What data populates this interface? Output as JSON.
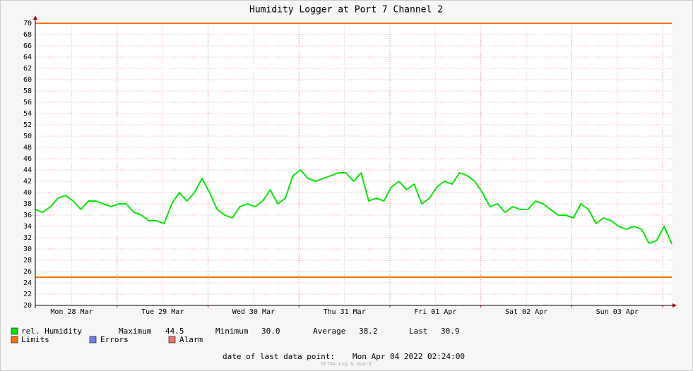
{
  "chart_data": {
    "type": "line",
    "title": "Humidity Logger at Port 7 Channel 2",
    "xlim": [
      2.4,
      170.4
    ],
    "x": [
      2.4,
      4.4,
      6.4,
      8.4,
      10.4,
      12.4,
      14.4,
      16.4,
      18.4,
      20.4,
      22.4,
      24.4,
      26.4,
      28.4,
      30.4,
      32.4,
      34.4,
      36.4,
      38.4,
      40.4,
      42.4,
      44.4,
      46.4,
      48.4,
      50.4,
      52.4,
      54.4,
      56.4,
      58.4,
      60.4,
      62.4,
      64.4,
      66.4,
      68.4,
      70.4,
      72.4,
      74.4,
      76.4,
      78.4,
      80.4,
      82.4,
      84.4,
      86.4,
      88.4,
      90.4,
      92.4,
      94.4,
      96.4,
      98.4,
      100.4,
      102.4,
      104.4,
      106.4,
      108.4,
      110.4,
      112.4,
      114.4,
      116.4,
      118.4,
      120.4,
      122.4,
      124.4,
      126.4,
      128.4,
      130.4,
      132.4,
      134.4,
      136.4,
      138.4,
      140.4,
      142.4,
      144.4,
      146.4,
      148.4,
      150.4,
      152.4,
      154.4,
      156.4,
      158.4,
      160.4,
      162.4,
      164.4,
      166.4,
      168.4,
      170.4
    ],
    "xticks": [
      {
        "value": 12,
        "label": "Mon 28 Mar"
      },
      {
        "value": 36,
        "label": "Tue 29 Mar"
      },
      {
        "value": 60,
        "label": "Wed 30 Mar"
      },
      {
        "value": 84,
        "label": "Thu 31 Mar"
      },
      {
        "value": 108,
        "label": "Fri 01 Apr"
      },
      {
        "value": 132,
        "label": "Sat 02 Apr"
      },
      {
        "value": 156,
        "label": "Sun 03 Apr"
      }
    ],
    "xgrid": [
      24,
      48,
      72,
      96,
      120,
      144,
      168
    ],
    "ylim": [
      20,
      70
    ],
    "yticks": [
      20,
      22,
      24,
      26,
      28,
      30,
      32,
      34,
      36,
      38,
      40,
      42,
      44,
      46,
      48,
      50,
      52,
      54,
      56,
      58,
      60,
      62,
      64,
      66,
      68,
      70
    ],
    "grid": true,
    "series": [
      {
        "name": "rel. Humidity",
        "color": "#00e600",
        "values": [
          37,
          36.5,
          37.5,
          39,
          39.5,
          38.5,
          37,
          38.5,
          38.5,
          38,
          37.5,
          38,
          38,
          36.5,
          36,
          35,
          35,
          34.5,
          38,
          40,
          38.5,
          40,
          42.5,
          40,
          37,
          36,
          35.5,
          37.5,
          38,
          37.5,
          38.5,
          40.5,
          38,
          39,
          43,
          44,
          42.5,
          42,
          42.5,
          43,
          43.5,
          43.5,
          42,
          43.5,
          38.5,
          39,
          38.5,
          41,
          42,
          40.5,
          41.5,
          38,
          39,
          41,
          42,
          41.5,
          43.5,
          43,
          42,
          40,
          37.5,
          38,
          36.5,
          37.5,
          37,
          37,
          38.5,
          38,
          37,
          36,
          36,
          35.5,
          38,
          37,
          34.5,
          35.5,
          35,
          34,
          33.5,
          34,
          33.5,
          31,
          31.5,
          34,
          30.9
        ]
      }
    ],
    "limits": {
      "name": "Limits",
      "color": "#ff7000",
      "values": [
        70,
        25
      ]
    },
    "legend_extra": [
      {
        "name": "Errors",
        "color": "#6f7ff0"
      },
      {
        "name": "Alarm",
        "color": "#f07070"
      }
    ],
    "stats": [
      {
        "label": "Maximum",
        "value": 44.5
      },
      {
        "label": "Minimum",
        "value": 30,
        "value_label": "30.0"
      },
      {
        "label": "Average",
        "value": 38.2
      },
      {
        "label": "Last",
        "value": 30.9
      }
    ],
    "footer": {
      "label": "date of last data point:",
      "value": "Mon Apr 04 2022 02:24:00"
    },
    "watermark": "OCTAA Log & Guard"
  }
}
